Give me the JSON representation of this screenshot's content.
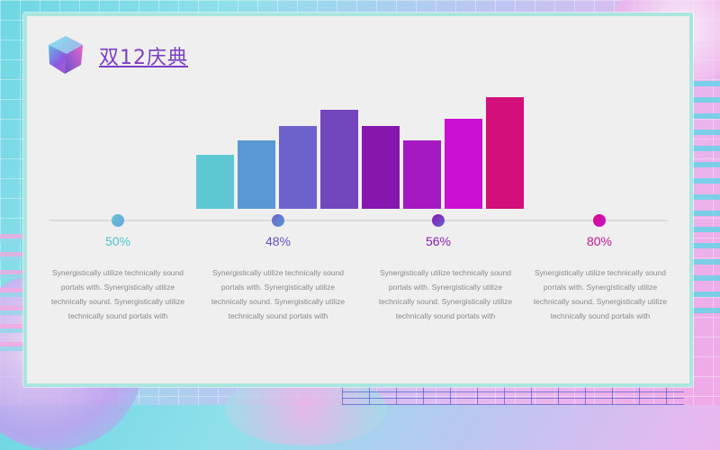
{
  "slide": {
    "title": "双12庆典"
  },
  "chart_data": {
    "type": "bar",
    "values": [
      30,
      38,
      46,
      55,
      46,
      38,
      50,
      62
    ],
    "colors": [
      "#5ec7d4",
      "#5a98d3",
      "#6d62cc",
      "#7446be",
      "#8716ae",
      "#a619c2",
      "#cc0fd3",
      "#d30f7a"
    ],
    "ylim": [
      0,
      62
    ]
  },
  "stats": [
    {
      "value": "50%",
      "color": "#4dc3d0",
      "dot_from": "#5ec7d4",
      "dot_to": "#6aa0dc",
      "text": "Synergistically utilize technically sound portals with. Synergistically utilize technically sound. Synergistically utilize technically sound portals with"
    },
    {
      "value": "48%",
      "color": "#6650c6",
      "dot_from": "#6d62cc",
      "dot_to": "#5a98d3",
      "text": "Synergistically utilize technically sound portals with. Synergistically utilize technically sound. Synergistically utilize technically sound portals with"
    },
    {
      "value": "56%",
      "color": "#8a20b4",
      "dot_from": "#8716ae",
      "dot_to": "#6d62cc",
      "text": "Synergistically utilize technically sound portals with. Synergistically utilize technically sound. Synergistically utilize technically sound portals with"
    },
    {
      "value": "80%",
      "color": "#c3189a",
      "dot_from": "#d30f7a",
      "dot_to": "#cc0fd3",
      "text": "Synergistically utilize technically sound portals with. Synergistically utilize technically sound. Synergistically utilize technically sound portals with"
    }
  ]
}
